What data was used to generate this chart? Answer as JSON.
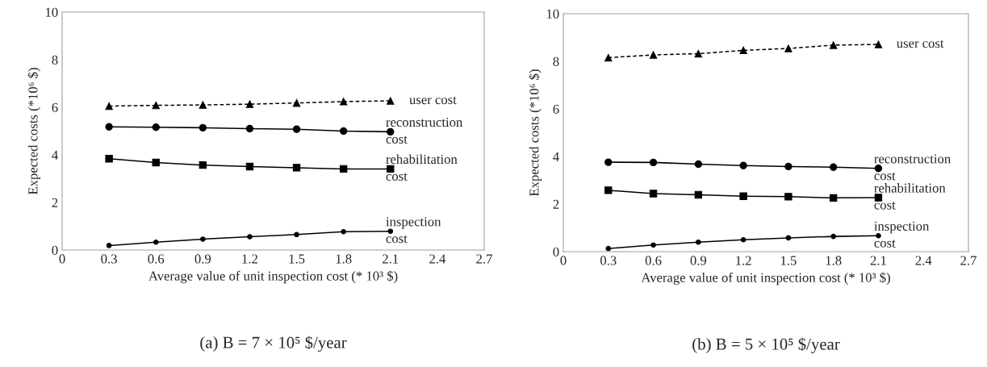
{
  "chart_data": [
    {
      "type": "line",
      "title": "(a) B = 7 × 10⁵ $/year",
      "xlabel": "Average value of unit inspection cost (* 10³ $)",
      "ylabel": "Expected costs (*10⁶ $)",
      "x": [
        0.3,
        0.6,
        0.9,
        1.2,
        1.5,
        1.8,
        2.1
      ],
      "series": [
        {
          "name": "user cost",
          "color": "#000000",
          "marker": "triangle",
          "line_style": "dashed",
          "values": [
            6.05,
            6.08,
            6.1,
            6.13,
            6.18,
            6.24,
            6.27
          ]
        },
        {
          "name": "reconstruction\ncost",
          "color": "#000000",
          "marker": "circle",
          "line_style": "solid",
          "values": [
            5.18,
            5.16,
            5.14,
            5.1,
            5.08,
            5.0,
            4.97
          ]
        },
        {
          "name": "rehabilitation\ncost",
          "color": "#000000",
          "marker": "square",
          "line_style": "solid",
          "values": [
            3.84,
            3.68,
            3.57,
            3.51,
            3.46,
            3.41,
            3.41
          ]
        },
        {
          "name": "inspection\ncost",
          "color": "#000000",
          "marker": "circle",
          "line_style": "solid",
          "values": [
            0.19,
            0.33,
            0.46,
            0.56,
            0.65,
            0.77,
            0.79
          ]
        }
      ],
      "xlim": [
        0,
        2.7
      ],
      "xticks": [
        0,
        0.3,
        0.6,
        0.9,
        1.2,
        1.5,
        1.8,
        2.1,
        2.4,
        2.7
      ],
      "ylim": [
        0,
        10
      ],
      "yticks": [
        0,
        2,
        4,
        6,
        8,
        10
      ],
      "grid": false
    },
    {
      "type": "line",
      "title": "(b) B = 5 × 10⁵ $/year",
      "xlabel": "Average value of unit inspection cost (* 10³ $)",
      "ylabel": "Expected costs (*10⁶ $)",
      "x": [
        0.3,
        0.6,
        0.9,
        1.2,
        1.5,
        1.8,
        2.1
      ],
      "series": [
        {
          "name": "user cost",
          "color": "#000000",
          "marker": "triangle",
          "line_style": "dashed",
          "values": [
            8.15,
            8.27,
            8.32,
            8.46,
            8.54,
            8.68,
            8.71
          ]
        },
        {
          "name": "reconstruction\ncost",
          "color": "#000000",
          "marker": "circle",
          "line_style": "solid",
          "values": [
            3.76,
            3.75,
            3.68,
            3.62,
            3.58,
            3.55,
            3.5
          ]
        },
        {
          "name": "rehabilitation\ncost",
          "color": "#000000",
          "marker": "square",
          "line_style": "solid",
          "values": [
            2.58,
            2.44,
            2.39,
            2.33,
            2.31,
            2.26,
            2.27
          ]
        },
        {
          "name": "inspection\ncost",
          "color": "#000000",
          "marker": "circle",
          "line_style": "solid",
          "values": [
            0.13,
            0.28,
            0.4,
            0.5,
            0.58,
            0.64,
            0.67
          ]
        }
      ],
      "xlim": [
        0,
        2.7
      ],
      "xticks": [
        0,
        0.3,
        0.6,
        0.9,
        1.2,
        1.5,
        1.8,
        2.1,
        2.4,
        2.7
      ],
      "ylim": [
        0,
        10
      ],
      "yticks": [
        0,
        2,
        4,
        6,
        8,
        10
      ],
      "grid": false
    }
  ]
}
